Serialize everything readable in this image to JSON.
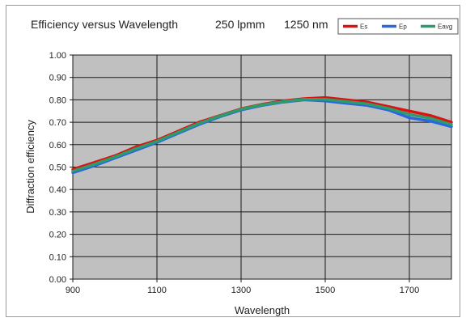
{
  "chart_data": {
    "type": "line",
    "title": "Efficiency versus Wavelength",
    "subtitle_groove": "250 lpmm",
    "subtitle_blaze": "1250 nm",
    "xlabel": "Wavelength",
    "ylabel": "Diffraction efficiency",
    "xlim": [
      900,
      1800
    ],
    "ylim": [
      0,
      1
    ],
    "x_ticks": [
      "900",
      "1100",
      "1300",
      "1500",
      "1700"
    ],
    "x_tick_values": [
      900,
      1100,
      1300,
      1500,
      1700
    ],
    "y_ticks": [
      "0.00",
      "0.10",
      "0.20",
      "0.30",
      "0.40",
      "0.50",
      "0.60",
      "0.70",
      "0.80",
      "0.90",
      "1.00"
    ],
    "y_tick_values": [
      0,
      0.1,
      0.2,
      0.3,
      0.4,
      0.5,
      0.6,
      0.7,
      0.8,
      0.9,
      1.0
    ],
    "grid": true,
    "plot_background": "#c0c0c0",
    "legend_position": "top-right",
    "x": [
      900,
      950,
      1000,
      1050,
      1100,
      1150,
      1200,
      1250,
      1300,
      1350,
      1400,
      1450,
      1500,
      1550,
      1600,
      1650,
      1700,
      1750,
      1800
    ],
    "series": [
      {
        "name": "Es",
        "color": "#e01010",
        "values": [
          0.49,
          0.52,
          0.55,
          0.59,
          0.62,
          0.66,
          0.7,
          0.73,
          0.76,
          0.78,
          0.795,
          0.805,
          0.81,
          0.8,
          0.79,
          0.77,
          0.75,
          0.73,
          0.7
        ]
      },
      {
        "name": "Ep",
        "color": "#2a66e0",
        "values": [
          0.475,
          0.505,
          0.54,
          0.575,
          0.61,
          0.65,
          0.69,
          0.725,
          0.755,
          0.775,
          0.79,
          0.8,
          0.795,
          0.785,
          0.775,
          0.755,
          0.72,
          0.705,
          0.68
        ]
      },
      {
        "name": "Eavg",
        "color": "#2e9c6a",
        "values": [
          0.482,
          0.512,
          0.545,
          0.582,
          0.615,
          0.655,
          0.695,
          0.728,
          0.758,
          0.778,
          0.792,
          0.802,
          0.802,
          0.792,
          0.782,
          0.762,
          0.735,
          0.718,
          0.69
        ]
      }
    ]
  }
}
